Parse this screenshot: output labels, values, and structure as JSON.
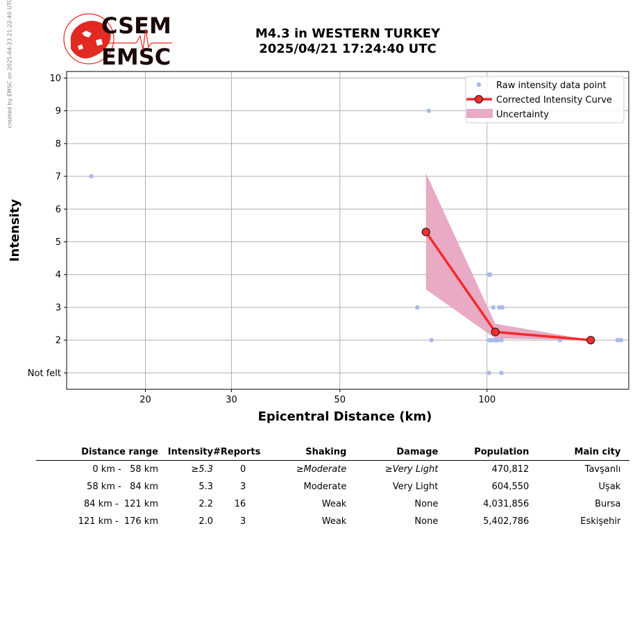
{
  "sidenote": "created by EMSC on 2025-04-23 21:22:40 UTC",
  "logo": {
    "line1": "CSEM",
    "line2": "EMSC",
    "color": "#e32a20"
  },
  "title": {
    "line1": "M4.3 in WESTERN TURKEY",
    "line2": "2025/04/21 17:24:40 UTC"
  },
  "chart_data": {
    "type": "scatter",
    "xlabel": "Epicentral Distance (km)",
    "ylabel": "Intensity",
    "x_scale": "log",
    "xlim": [
      13.8,
      195
    ],
    "ylim": [
      0.5,
      10.2
    ],
    "x_ticks": [
      20,
      30,
      50,
      100
    ],
    "y_ticks": [
      {
        "value": 1,
        "label": "Not felt"
      },
      {
        "value": 2,
        "label": "2"
      },
      {
        "value": 3,
        "label": "3"
      },
      {
        "value": 4,
        "label": "4"
      },
      {
        "value": 5,
        "label": "5"
      },
      {
        "value": 6,
        "label": "6"
      },
      {
        "value": 7,
        "label": "7"
      },
      {
        "value": 8,
        "label": "8"
      },
      {
        "value": 9,
        "label": "9"
      },
      {
        "value": 10,
        "label": "10"
      }
    ],
    "grid": true,
    "legend_position": "top-right",
    "legend": [
      "Raw intensity data point",
      "Corrected Intensity Curve",
      "Uncertainty"
    ],
    "colors": {
      "raw": "#aab8e8",
      "curve": "#f52a2a",
      "marker": "#ff2a2a",
      "uncertainty": "#e8aac4"
    },
    "raw_points": [
      {
        "x": 15.5,
        "y": 7
      },
      {
        "x": 72,
        "y": 3
      },
      {
        "x": 76,
        "y": 9
      },
      {
        "x": 77,
        "y": 2
      },
      {
        "x": 101,
        "y": 4
      },
      {
        "x": 101.5,
        "y": 4
      },
      {
        "x": 101,
        "y": 2
      },
      {
        "x": 102,
        "y": 2
      },
      {
        "x": 103,
        "y": 3
      },
      {
        "x": 103.5,
        "y": 2
      },
      {
        "x": 104,
        "y": 2
      },
      {
        "x": 105,
        "y": 2
      },
      {
        "x": 106,
        "y": 3
      },
      {
        "x": 107,
        "y": 2
      },
      {
        "x": 107.5,
        "y": 3
      },
      {
        "x": 101,
        "y": 1
      },
      {
        "x": 107,
        "y": 1
      },
      {
        "x": 141,
        "y": 2
      },
      {
        "x": 185,
        "y": 2
      },
      {
        "x": 188,
        "y": 2
      }
    ],
    "curve": [
      {
        "x": 75,
        "y": 5.3
      },
      {
        "x": 104,
        "y": 2.25
      },
      {
        "x": 163,
        "y": 2.0
      }
    ],
    "uncertainty": {
      "upper": [
        {
          "x": 75,
          "y": 7.1
        },
        {
          "x": 104,
          "y": 2.5
        },
        {
          "x": 163,
          "y": 2.0
        }
      ],
      "lower": [
        {
          "x": 75,
          "y": 3.55
        },
        {
          "x": 104,
          "y": 2.05
        },
        {
          "x": 163,
          "y": 2.0
        }
      ]
    }
  },
  "table": {
    "headers": [
      "Distance range",
      "Intensity",
      "#Reports",
      "Shaking",
      "Damage",
      "Population",
      "Main city"
    ],
    "rows": [
      [
        "0 km -   58 km",
        "≥5.3",
        "0",
        "≥Moderate",
        "≥Very Light",
        "470,812",
        "Tavşanlı"
      ],
      [
        "58 km -   84 km",
        "5.3",
        "3",
        "Moderate",
        "Very Light",
        "604,550",
        "Uşak"
      ],
      [
        "84 km -  121 km",
        "2.2",
        "16",
        "Weak",
        "None",
        "4,031,856",
        "Bursa"
      ],
      [
        "121 km -  176 km",
        "2.0",
        "3",
        "Weak",
        "None",
        "5,402,786",
        "Eskişehir"
      ]
    ]
  }
}
